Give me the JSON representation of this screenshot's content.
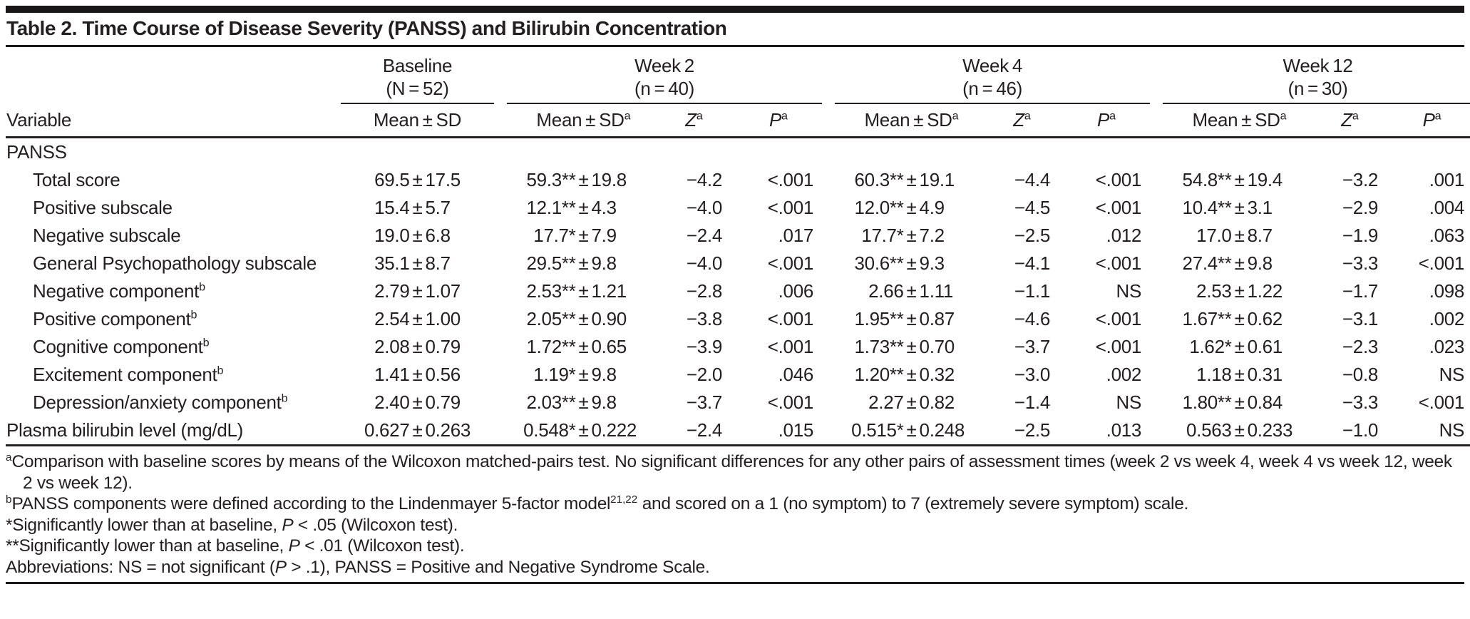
{
  "title": "Table 2. Time Course of Disease Severity (PANSS) and Bilirubin Concentration",
  "header": {
    "variable_label": "Variable",
    "groups": [
      {
        "label": "Baseline",
        "n": "(N = 52)",
        "subcols": [
          "Mean ± SD"
        ]
      },
      {
        "label": "Week 2",
        "n": "(n = 40)",
        "subcols": [
          "Mean ± SD^a",
          "//Z//^a",
          "//P//^a"
        ]
      },
      {
        "label": "Week 4",
        "n": "(n = 46)",
        "subcols": [
          "Mean ± SD^a",
          "//Z//^a",
          "//P//^a"
        ]
      },
      {
        "label": "Week 12",
        "n": "(n = 30)",
        "subcols": [
          "Mean ± SD^a",
          "//Z//^a",
          "//P//^a"
        ]
      }
    ]
  },
  "rows": [
    {
      "label": "PANSS",
      "indent": false,
      "cells": [
        "",
        "",
        "",
        "",
        "",
        "",
        "",
        "",
        "",
        ""
      ]
    },
    {
      "label": "Total score",
      "indent": true,
      "cells": [
        "69.5±17.5",
        "59.3**±19.8",
        "−4.2",
        "<.001",
        "60.3**±19.1",
        "−4.4",
        "<.001",
        "54.8**±19.4",
        "−3.2",
        ".001"
      ]
    },
    {
      "label": "Positive subscale",
      "indent": true,
      "cells": [
        "15.4±5.7",
        "12.1**±4.3",
        "−4.0",
        "<.001",
        "12.0**±4.9",
        "−4.5",
        "<.001",
        "10.4**±3.1",
        "−2.9",
        ".004"
      ]
    },
    {
      "label": "Negative subscale",
      "indent": true,
      "cells": [
        "19.0±6.8",
        "17.7*±7.9",
        "−2.4",
        ".017",
        "17.7*±7.2",
        "−2.5",
        ".012",
        "17.0±8.7",
        "−1.9",
        ".063"
      ]
    },
    {
      "label": "General Psychopathology subscale",
      "indent": true,
      "cells": [
        "35.1±8.7",
        "29.5**±9.8",
        "−4.0",
        "<.001",
        "30.6**±9.3",
        "−4.1",
        "<.001",
        "27.4**±9.8",
        "−3.3",
        "<.001"
      ]
    },
    {
      "label": "Negative component^b",
      "indent": true,
      "cells": [
        "2.79±1.07",
        "2.53**±1.21",
        "−2.8",
        ".006",
        "2.66±1.11",
        "−1.1",
        "NS",
        "2.53±1.22",
        "−1.7",
        ".098"
      ]
    },
    {
      "label": "Positive component^b",
      "indent": true,
      "cells": [
        "2.54±1.00",
        "2.05**±0.90",
        "−3.8",
        "<.001",
        "1.95**±0.87",
        "−4.6",
        "<.001",
        "1.67**±0.62",
        "−3.1",
        ".002"
      ]
    },
    {
      "label": "Cognitive component^b",
      "indent": true,
      "cells": [
        "2.08±0.79",
        "1.72**±0.65",
        "−3.9",
        "<.001",
        "1.73**±0.70",
        "−3.7",
        "<.001",
        "1.62*±0.61",
        "−2.3",
        ".023"
      ]
    },
    {
      "label": "Excitement component^b",
      "indent": true,
      "cells": [
        "1.41±0.56",
        "1.19*±9.8",
        "−2.0",
        ".046",
        "1.20**±0.32",
        "−3.0",
        ".002",
        "1.18±0.31",
        "−0.8",
        "NS"
      ]
    },
    {
      "label": "Depression/anxiety component^b",
      "indent": true,
      "cells": [
        "2.40±0.79",
        "2.03**±9.8",
        "−3.7",
        "<.001",
        "2.27±0.82",
        "−1.4",
        "NS",
        "1.80**±0.84",
        "−3.3",
        "<.001"
      ]
    },
    {
      "label": "Plasma bilirubin level (mg/dL)",
      "indent": false,
      "cells": [
        "0.627±0.263",
        "0.548*±0.222",
        "−2.4",
        ".015",
        "0.515*±0.248",
        "−2.5",
        ".013",
        "0.563±0.233",
        "−1.0",
        "NS"
      ]
    }
  ],
  "footnotes": [
    "^aComparison with baseline scores by means of the Wilcoxon matched-pairs test. No significant differences for any other pairs of assessment times (week 2 vs week 4, week 4 vs week 12, week 2 vs week 12).",
    "^bPANSS components were defined according to the Lindenmayer 5-factor model^{21,22} and scored on a 1 (no symptom) to 7 (extremely severe symptom) scale.",
    "*Significantly lower than at baseline, //P// < .05 (Wilcoxon test).",
    "**Significantly lower than at baseline, //P// < .01 (Wilcoxon test).",
    "Abbreviations: NS = not significant (//P// > .1), PANSS = Positive and Negative Syndrome Scale."
  ],
  "colors": {
    "text": "#231f20",
    "rule": "#1a1718",
    "background": "#ffffff"
  }
}
